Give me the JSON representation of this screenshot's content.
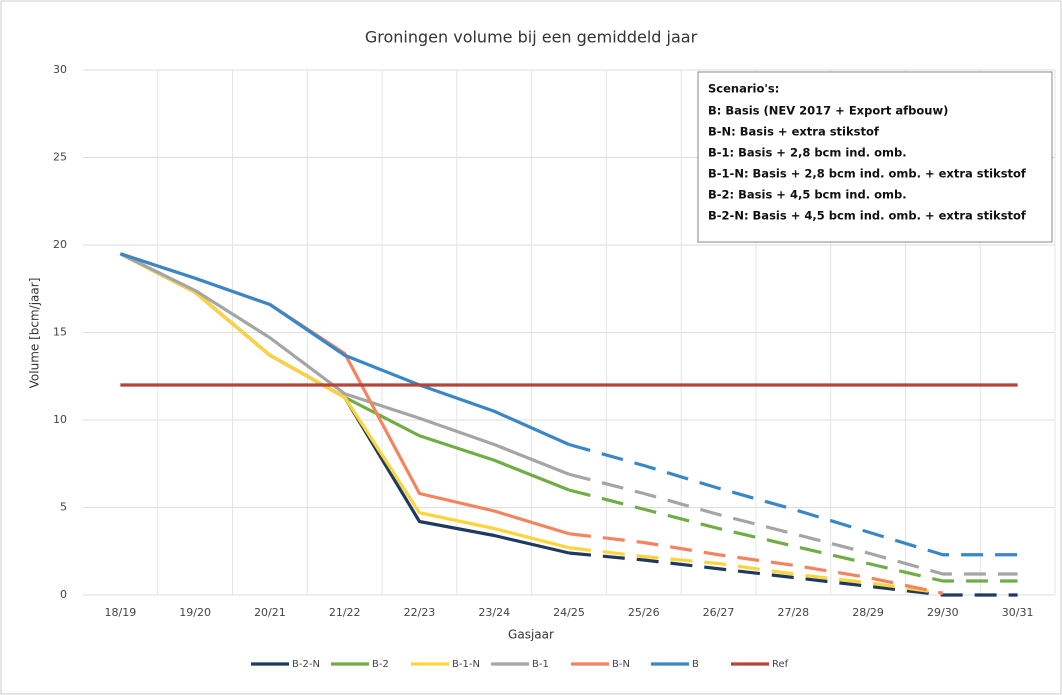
{
  "chart_data": {
    "type": "line",
    "title": "Groningen volume bij een gemiddeld jaar",
    "x_label": "Gasjaar",
    "y_label": "Volume [bcm/jaar]",
    "categories": [
      "18/19",
      "19/20",
      "20/21",
      "21/22",
      "22/23",
      "23/24",
      "24/25",
      "25/26",
      "26/27",
      "27/28",
      "28/29",
      "29/30",
      "30/31"
    ],
    "ylim": [
      0,
      30
    ],
    "yticks": [
      0,
      5,
      10,
      15,
      20,
      25,
      30
    ],
    "grid": true,
    "legend": "bottom",
    "annotation": {
      "title": "Scenario's:",
      "lines": [
        "B: Basis (NEV 2017 + Export afbouw)",
        "B-N: Basis + extra stikstof",
        "B-1: Basis + 2,8 bcm ind. omb.",
        "B-1-N: Basis + 2,8 bcm ind. omb. + extra stikstof",
        "B-2: Basis + 4,5 bcm ind. omb.",
        "B-2-N: Basis + 4,5 bcm ind. omb. + extra stikstof"
      ]
    },
    "series": [
      {
        "name": "B-2-N",
        "color": "#1f3a5f",
        "dashed_from": "24/25",
        "values": [
          19.5,
          17.3,
          13.7,
          11.3,
          4.2,
          3.4,
          2.4,
          2.0,
          1.5,
          1.0,
          0.5,
          0.0,
          0.0
        ]
      },
      {
        "name": "B-2",
        "color": "#70ad47",
        "dashed_from": "24/25",
        "values": [
          19.5,
          17.3,
          13.7,
          11.3,
          9.1,
          7.7,
          6.0,
          4.9,
          3.8,
          2.8,
          1.8,
          0.8,
          0.8
        ]
      },
      {
        "name": "B-1-N",
        "color": "#ffd43b",
        "dashed_from": "24/25",
        "values": [
          19.5,
          17.3,
          13.7,
          11.3,
          4.7,
          3.8,
          2.7,
          2.2,
          1.8,
          1.2,
          0.7,
          0.1,
          null
        ]
      },
      {
        "name": "B-1",
        "color": "#a5a5a5",
        "dashed_from": "24/25",
        "values": [
          19.5,
          17.4,
          14.7,
          11.5,
          10.1,
          8.6,
          6.9,
          5.8,
          4.6,
          3.5,
          2.4,
          1.2,
          1.2
        ]
      },
      {
        "name": "B-N",
        "color": "#f4845f",
        "dashed_from": "24/25",
        "values": [
          19.5,
          18.1,
          16.6,
          13.8,
          5.8,
          4.8,
          3.5,
          3.0,
          2.3,
          1.7,
          1.0,
          0.1,
          null
        ]
      },
      {
        "name": "B",
        "color": "#3a87c8",
        "dashed_from": "24/25",
        "values": [
          19.5,
          18.1,
          16.6,
          13.7,
          12.0,
          10.5,
          8.6,
          7.4,
          6.1,
          4.9,
          3.6,
          2.3,
          2.3
        ]
      },
      {
        "name": "Ref",
        "color": "#b5443a",
        "values": [
          12,
          12,
          12,
          12,
          12,
          12,
          12,
          12,
          12,
          12,
          12,
          12,
          12
        ]
      }
    ]
  }
}
